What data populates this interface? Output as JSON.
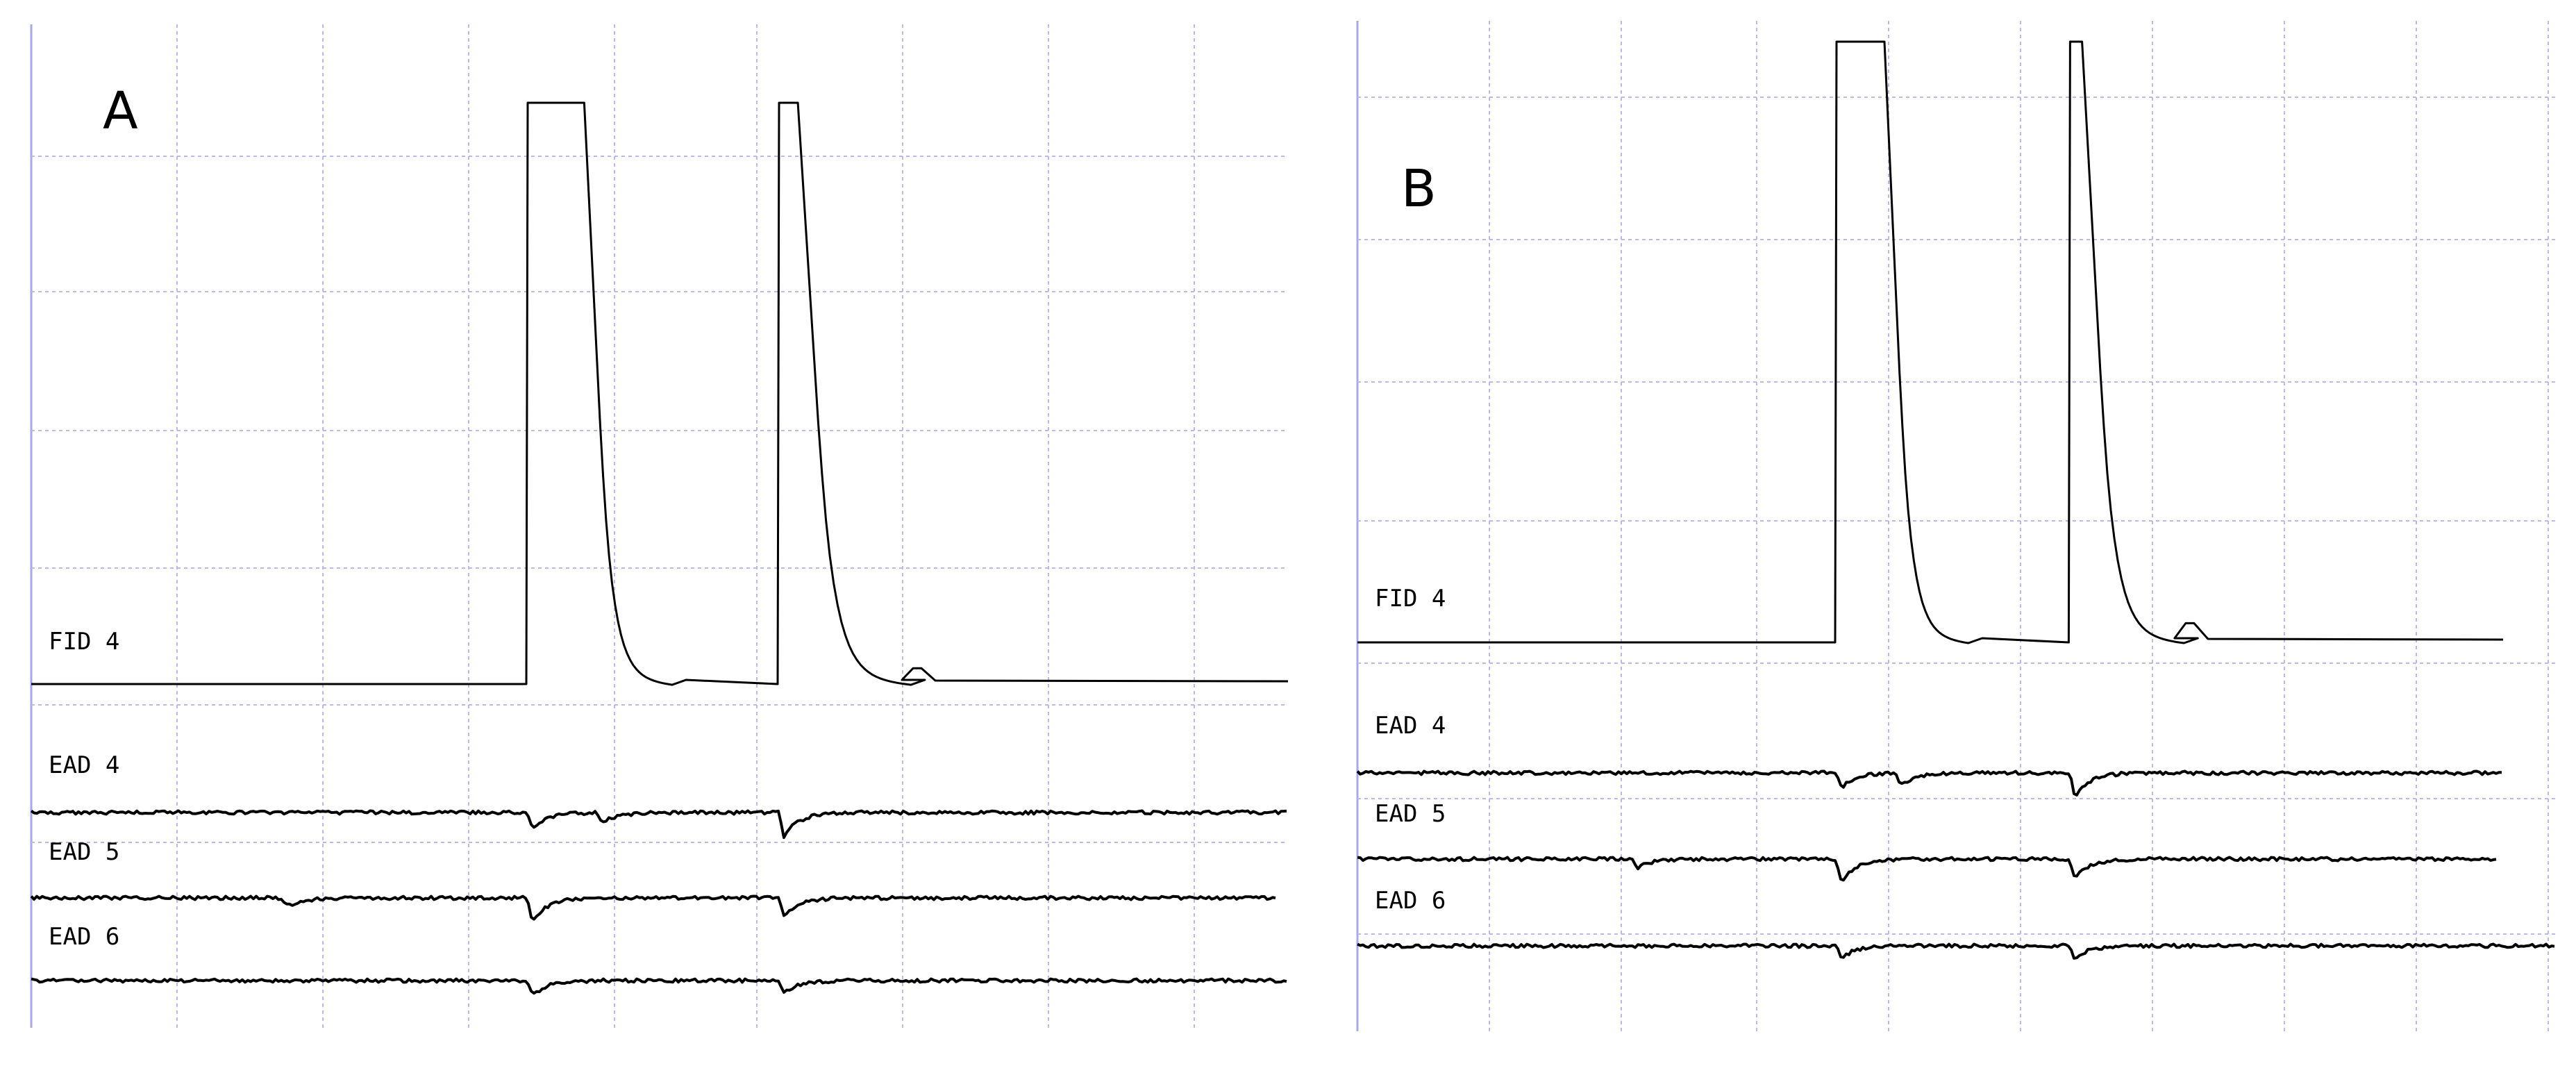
{
  "figure": {
    "panels": [
      {
        "id": "A",
        "label": "A"
      },
      {
        "id": "B",
        "label": "B"
      }
    ]
  },
  "chart_data": [
    {
      "type": "line",
      "panel": "A",
      "title": "",
      "xlabel": "",
      "ylabel": "",
      "grid": true,
      "series": [
        {
          "name": "FID 4",
          "kind": "fid",
          "baseline": 0,
          "peaks": [
            {
              "start": 0.395,
              "plateau_end": 0.44,
              "decay_end": 0.51,
              "clipped": true
            },
            {
              "start": 0.595,
              "plateau_end": 0.61,
              "decay_end": 0.7,
              "clipped": true
            },
            {
              "position": 0.705,
              "height": 0.02
            }
          ]
        },
        {
          "name": "EAD 4",
          "kind": "ead",
          "deflections": [
            {
              "position": 0.395,
              "depth": 0.5
            },
            {
              "position": 0.45,
              "depth": 0.35
            },
            {
              "position": 0.595,
              "depth": 0.8
            }
          ]
        },
        {
          "name": "EAD 5",
          "kind": "ead",
          "deflections": [
            {
              "position": 0.2,
              "depth": 0.3
            },
            {
              "position": 0.395,
              "depth": 0.8
            },
            {
              "position": 0.595,
              "depth": 0.6
            }
          ]
        },
        {
          "name": "EAD 6",
          "kind": "ead",
          "deflections": [
            {
              "position": 0.395,
              "depth": 0.6
            },
            {
              "position": 0.595,
              "depth": 0.5
            }
          ]
        }
      ]
    },
    {
      "type": "line",
      "panel": "B",
      "title": "",
      "xlabel": "",
      "ylabel": "",
      "grid": true,
      "series": [
        {
          "name": "FID 4",
          "kind": "fid",
          "baseline": 0,
          "peaks": [
            {
              "start": 0.4,
              "plateau_end": 0.44,
              "decay_end": 0.51,
              "clipped": true
            },
            {
              "start": 0.595,
              "plateau_end": 0.605,
              "decay_end": 0.69,
              "clipped": true
            },
            {
              "position": 0.695,
              "height": 0.025
            }
          ]
        },
        {
          "name": "EAD 4",
          "kind": "ead",
          "deflections": [
            {
              "position": 0.4,
              "depth": 0.5
            },
            {
              "position": 0.45,
              "depth": 0.4
            },
            {
              "position": 0.595,
              "depth": 0.8
            }
          ]
        },
        {
          "name": "EAD 5",
          "kind": "ead",
          "deflections": [
            {
              "position": 0.23,
              "depth": 0.3
            },
            {
              "position": 0.4,
              "depth": 0.8
            },
            {
              "position": 0.595,
              "depth": 0.7
            }
          ]
        },
        {
          "name": "EAD 6",
          "kind": "ead",
          "deflections": [
            {
              "position": 0.4,
              "depth": 0.5
            },
            {
              "position": 0.595,
              "depth": 0.5
            }
          ]
        }
      ]
    }
  ]
}
